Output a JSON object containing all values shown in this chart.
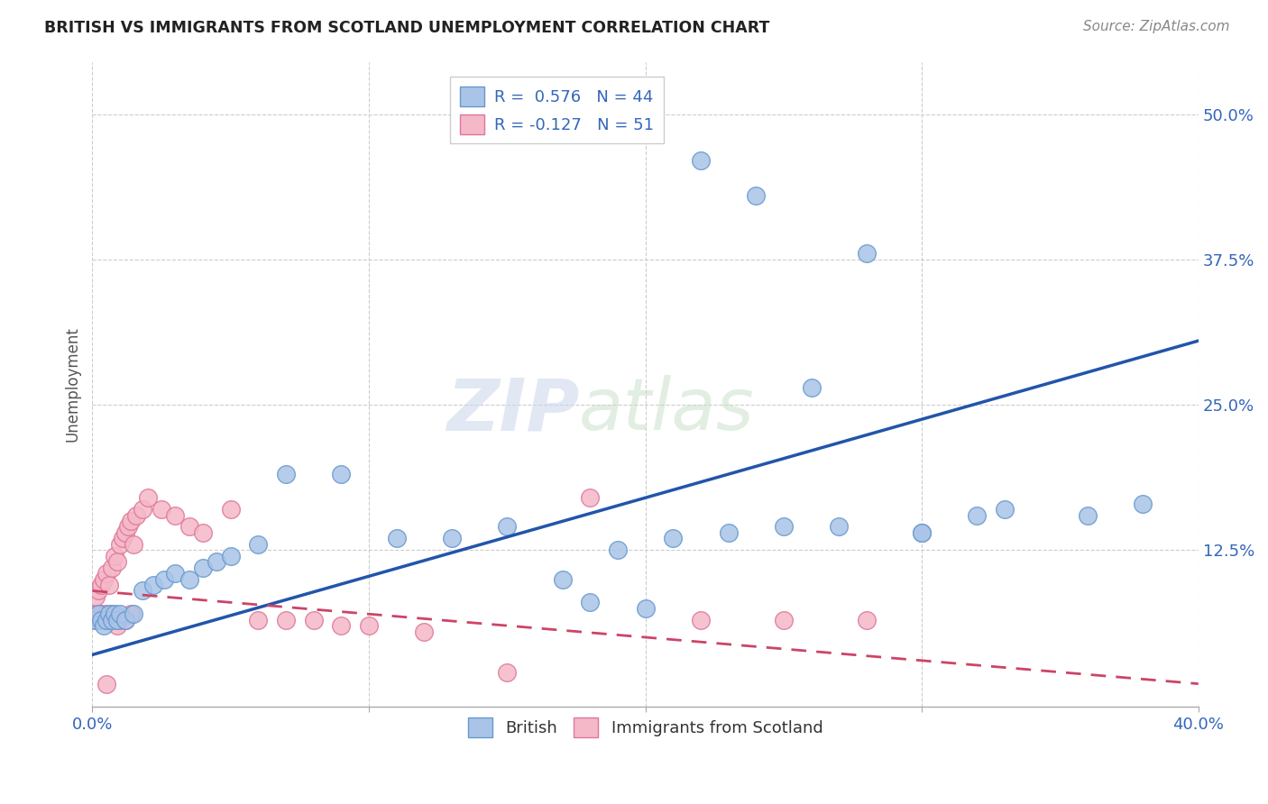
{
  "title": "BRITISH VS IMMIGRANTS FROM SCOTLAND UNEMPLOYMENT CORRELATION CHART",
  "source": "Source: ZipAtlas.com",
  "ylabel": "Unemployment",
  "xlim": [
    0.0,
    0.4
  ],
  "ylim": [
    -0.01,
    0.545
  ],
  "blue_color": "#aac4e8",
  "pink_color": "#f5b8c8",
  "blue_edge_color": "#6699cc",
  "pink_edge_color": "#dd7799",
  "blue_line_color": "#2255aa",
  "pink_line_color": "#cc4466",
  "grid_color": "#cccccc",
  "british_x": [
    0.001,
    0.002,
    0.003,
    0.004,
    0.005,
    0.006,
    0.007,
    0.008,
    0.009,
    0.01,
    0.012,
    0.015,
    0.018,
    0.022,
    0.026,
    0.03,
    0.035,
    0.04,
    0.045,
    0.05,
    0.06,
    0.07,
    0.09,
    0.11,
    0.13,
    0.15,
    0.17,
    0.19,
    0.21,
    0.23,
    0.25,
    0.27,
    0.3,
    0.33,
    0.36,
    0.38,
    0.22,
    0.24,
    0.26,
    0.28,
    0.3,
    0.32,
    0.2,
    0.18
  ],
  "british_y": [
    0.065,
    0.07,
    0.065,
    0.06,
    0.065,
    0.07,
    0.065,
    0.07,
    0.065,
    0.07,
    0.065,
    0.07,
    0.09,
    0.095,
    0.1,
    0.105,
    0.1,
    0.11,
    0.115,
    0.12,
    0.13,
    0.19,
    0.19,
    0.135,
    0.135,
    0.145,
    0.1,
    0.125,
    0.135,
    0.14,
    0.145,
    0.145,
    0.14,
    0.16,
    0.155,
    0.165,
    0.46,
    0.43,
    0.265,
    0.38,
    0.14,
    0.155,
    0.075,
    0.08
  ],
  "scotland_x": [
    0.001,
    0.002,
    0.003,
    0.004,
    0.005,
    0.006,
    0.007,
    0.008,
    0.009,
    0.01,
    0.012,
    0.014,
    0.001,
    0.002,
    0.003,
    0.004,
    0.005,
    0.006,
    0.007,
    0.008,
    0.009,
    0.01,
    0.011,
    0.012,
    0.013,
    0.014,
    0.015,
    0.016,
    0.018,
    0.02,
    0.025,
    0.03,
    0.035,
    0.04,
    0.05,
    0.06,
    0.07,
    0.08,
    0.09,
    0.1,
    0.12,
    0.15,
    0.18,
    0.22,
    0.25,
    0.28,
    0.001,
    0.002,
    0.003,
    0.004,
    0.005
  ],
  "scotland_y": [
    0.07,
    0.065,
    0.07,
    0.065,
    0.07,
    0.065,
    0.07,
    0.065,
    0.06,
    0.065,
    0.065,
    0.07,
    0.085,
    0.09,
    0.095,
    0.1,
    0.105,
    0.095,
    0.11,
    0.12,
    0.115,
    0.13,
    0.135,
    0.14,
    0.145,
    0.15,
    0.13,
    0.155,
    0.16,
    0.17,
    0.16,
    0.155,
    0.145,
    0.14,
    0.16,
    0.065,
    0.065,
    0.065,
    0.06,
    0.06,
    0.055,
    0.02,
    0.17,
    0.065,
    0.065,
    0.065,
    0.065,
    0.065,
    0.065,
    0.065,
    0.01
  ],
  "british_R": 0.576,
  "british_N": 44,
  "scotland_R": -0.127,
  "scotland_N": 51,
  "blue_line_x0": 0.0,
  "blue_line_y0": 0.035,
  "blue_line_x1": 0.4,
  "blue_line_y1": 0.305,
  "pink_line_x0": 0.0,
  "pink_line_y0": 0.09,
  "pink_line_x1": 0.4,
  "pink_line_y1": 0.01
}
